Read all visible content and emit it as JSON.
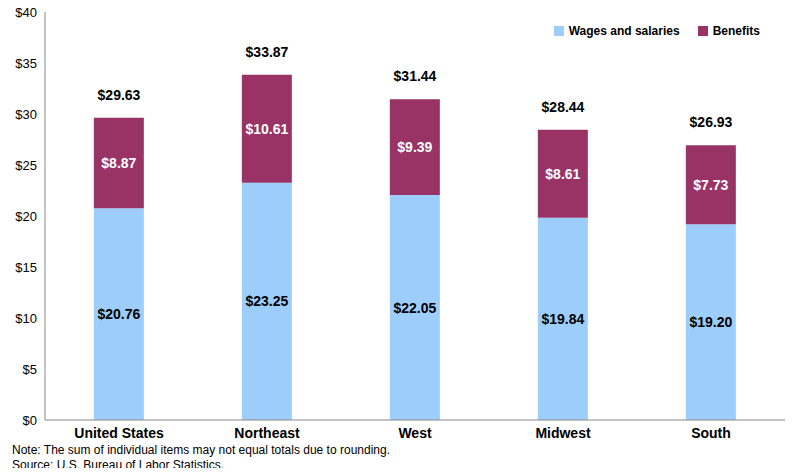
{
  "chart_data": {
    "type": "bar",
    "stacked": true,
    "data_labels": true,
    "legend": "upper right",
    "grid": false,
    "categories": [
      "United States",
      "Northeast",
      "West",
      "Midwest",
      "South"
    ],
    "series": [
      {
        "name": "Wages and salaries",
        "color": "#9dcdfa",
        "values": [
          20.76,
          23.25,
          22.05,
          19.84,
          19.2
        ],
        "value_labels": [
          "$20.76",
          "$23.25",
          "$22.05",
          "$19.84",
          "$19.20"
        ]
      },
      {
        "name": "Benefits",
        "color": "#993366",
        "values": [
          8.87,
          10.61,
          9.39,
          8.61,
          7.73
        ],
        "value_labels": [
          "$8.87",
          "$10.61",
          "$9.39",
          "$8.61",
          "$7.73"
        ]
      }
    ],
    "totals": [
      29.63,
      33.87,
      31.44,
      28.44,
      26.93
    ],
    "total_labels": [
      "$29.63",
      "$33.87",
      "$31.44",
      "$28.44",
      "$26.93"
    ],
    "ylim": [
      0,
      40
    ],
    "yticks": [
      {
        "value": 0,
        "label": "$0"
      },
      {
        "value": 5,
        "label": "$5"
      },
      {
        "value": 10,
        "label": "$10"
      },
      {
        "value": 15,
        "label": "$15"
      },
      {
        "value": 20,
        "label": "$20"
      },
      {
        "value": 25,
        "label": "$25"
      },
      {
        "value": 30,
        "label": "$30"
      },
      {
        "value": 35,
        "label": "$35"
      },
      {
        "value": 40,
        "label": "$40"
      }
    ],
    "note": "Note: The sum of individual items may not equal totals due to rounding.",
    "source": "Source: U.S. Bureau of Labor Statistics."
  }
}
